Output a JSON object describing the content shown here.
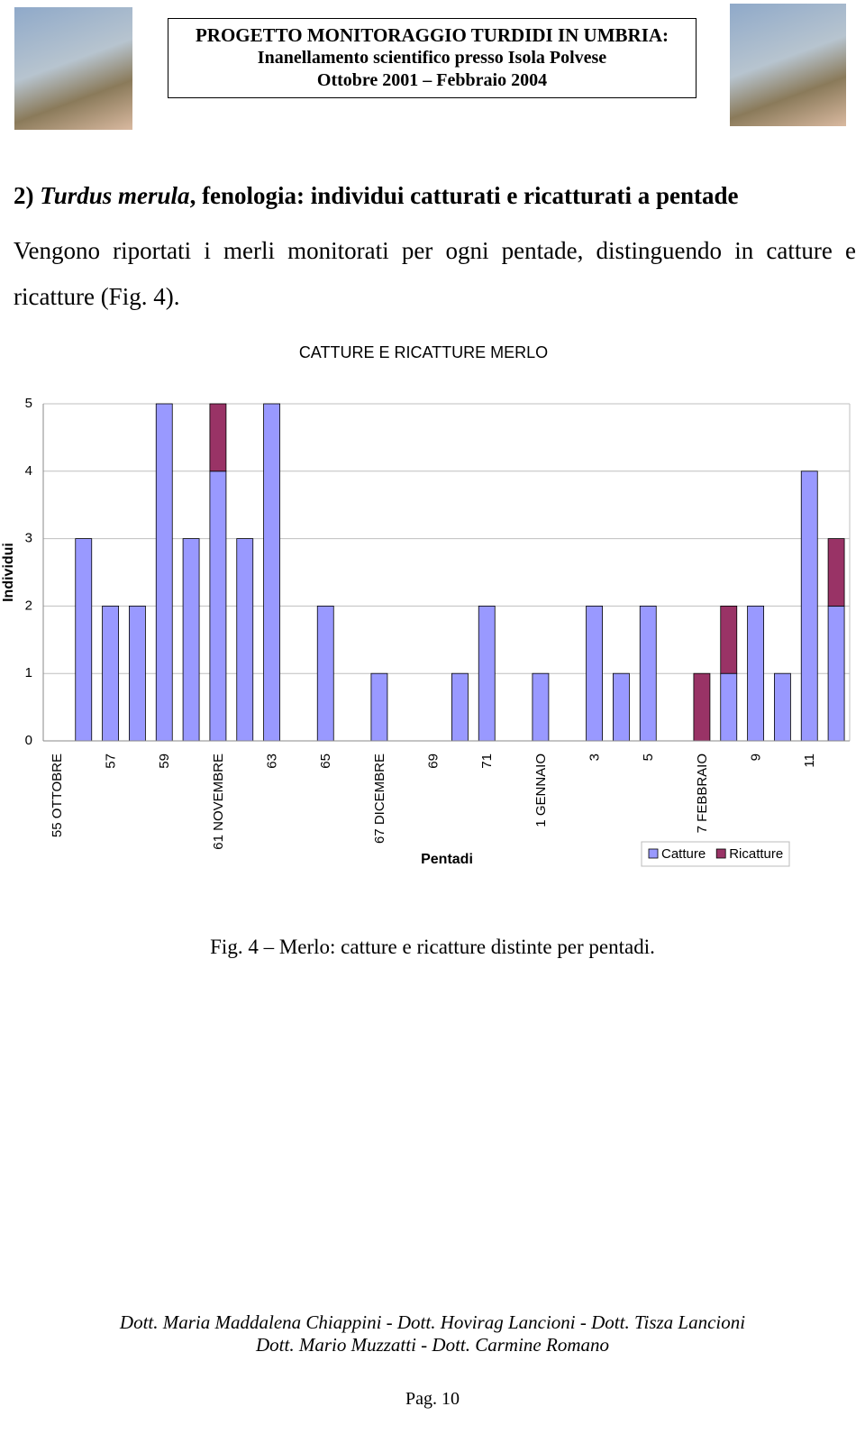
{
  "header": {
    "lines": [
      "PROGETTO MONITORAGGIO TURDIDI IN UMBRIA:",
      "Inanellamento scientifico presso Isola Polvese",
      "Ottobre 2001 – Febbraio 2004"
    ]
  },
  "section": {
    "number": "2)",
    "species": "Turdus merula",
    "title": ", fenologia: individui catturati e ricatturati a pentade",
    "text": "Vengono riportati i merli monitorati per ogni pentade, distinguendo in catture e ricatture (Fig. 4)."
  },
  "chart_data": {
    "type": "stacked_bar",
    "title": "CATTURE E RICATTURE MERLO",
    "x_label": "Pentadi",
    "y_label": "Individui",
    "categories": [
      "55 OTTOBRE",
      null,
      "57",
      null,
      "59",
      null,
      "61 NOVEMBRE",
      null,
      "63",
      null,
      "65",
      null,
      "67 DICEMBRE",
      null,
      "69",
      null,
      "71",
      null,
      "1 GENNAIO",
      null,
      "3",
      null,
      "5",
      null,
      "7 FEBBRAIO",
      null,
      "9",
      null,
      "11",
      null
    ],
    "series": [
      {
        "name": "Catture",
        "color": "#9999ff",
        "values": [
          0,
          3,
          2,
          2,
          5,
          3,
          4,
          3,
          5,
          0,
          2,
          0,
          1,
          0,
          0,
          1,
          2,
          0,
          1,
          0,
          2,
          1,
          2,
          0,
          0,
          1,
          2,
          1,
          4,
          2
        ]
      },
      {
        "name": "Ricatture",
        "color": "#993366",
        "values": [
          0,
          0,
          0,
          0,
          0,
          0,
          1,
          0,
          0,
          0,
          0,
          0,
          0,
          0,
          0,
          0,
          0,
          0,
          0,
          0,
          0,
          0,
          0,
          0,
          1,
          1,
          0,
          0,
          0,
          1
        ]
      }
    ],
    "ylim": [
      0,
      5
    ],
    "yticks": [
      0,
      1,
      2,
      3,
      4,
      5
    ],
    "grid": true,
    "legend": "bottom-right"
  },
  "caption": "Fig. 4 – Merlo: catture e ricatture distinte per pentadi.",
  "footer": {
    "authors": [
      "Dott. Maria Maddalena Chiappini - Dott. Hovirag Lancioni - Dott. Tisza Lancioni",
      "Dott. Mario Muzzatti - Dott. Carmine Romano"
    ],
    "page": "Pag. 10"
  }
}
